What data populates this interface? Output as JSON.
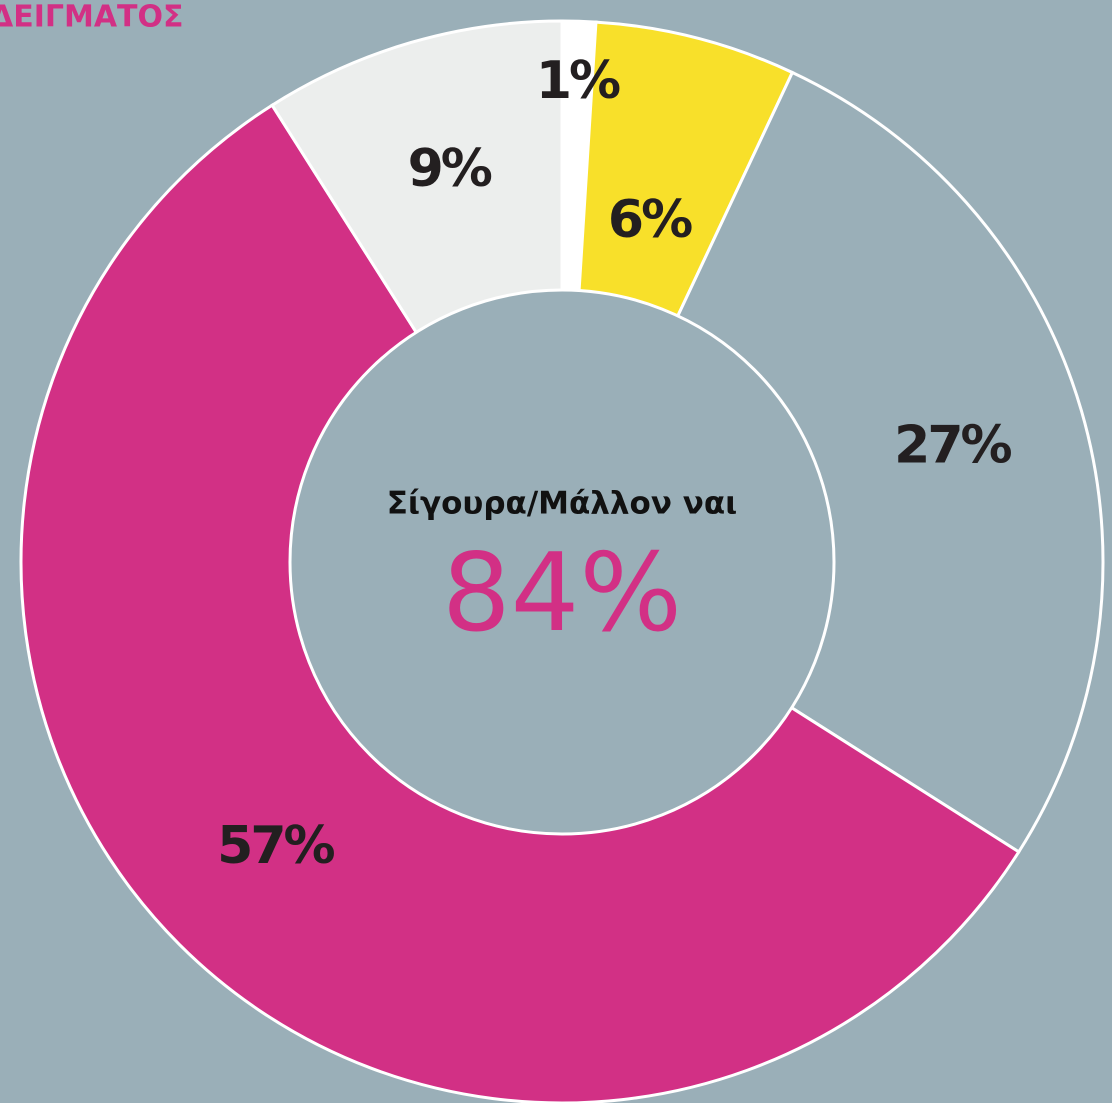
{
  "chart_data": {
    "type": "pie",
    "title": "ΔΕΙΓΜΑΤΟΣ",
    "categories": [
      null,
      null,
      null,
      null,
      null
    ],
    "values": [
      1,
      6,
      27,
      57,
      9
    ],
    "value_labels": [
      "1%",
      "6%",
      "27%",
      "57%",
      "9%"
    ],
    "colors": [
      "#ffffff",
      "#f8e02a",
      "#9aafb8",
      "#d23085",
      "#eceeed"
    ],
    "center_text": "Σίγουρα/Μάλλον ναι",
    "center_value_label": "84%"
  }
}
